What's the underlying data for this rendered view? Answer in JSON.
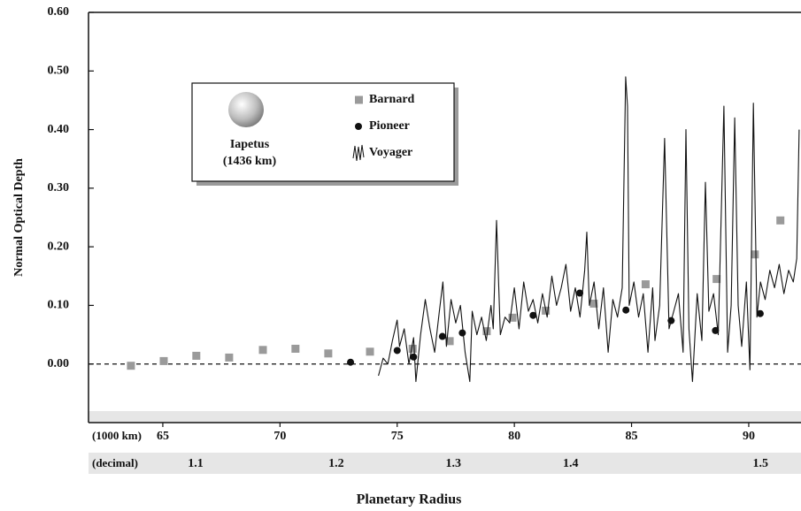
{
  "chart_data": {
    "type": "scatter",
    "y_label": "Normal Optical Depth",
    "x_label": "Planetary Radius",
    "xlim": [
      61.83,
      92.23
    ],
    "ylim": [
      -0.1,
      0.6
    ],
    "xticks": [
      65,
      70,
      75,
      80,
      85,
      90
    ],
    "x_row_label": "(1000 km)",
    "x2_row_label": "(decimal)",
    "x2ticks": [
      {
        "value": 66.4,
        "label": "1.1"
      },
      {
        "value": 72.4,
        "label": "1.2"
      },
      {
        "value": 77.4,
        "label": "1.3"
      },
      {
        "value": 82.4,
        "label": "1.4"
      },
      {
        "value": 90.5,
        "label": "1.5"
      }
    ],
    "yticks": [
      {
        "value": 0.6,
        "label": "0.60"
      },
      {
        "value": 0.5,
        "label": "0.50"
      },
      {
        "value": 0.4,
        "label": "0.40"
      },
      {
        "value": 0.3,
        "label": "0.30"
      },
      {
        "value": 0.2,
        "label": "0.20"
      },
      {
        "value": 0.1,
        "label": "0.10"
      },
      {
        "value": 0,
        "label": "0.00"
      }
    ],
    "reference_line": 0,
    "legend": "upper left",
    "annotation": [
      "Iapetus",
      "(1436 km)"
    ],
    "series": [
      {
        "name": "Barnard",
        "color": "#9a9a9a",
        "marker": "square",
        "x": [
          63.64,
          65.04,
          66.43,
          67.83,
          69.27,
          70.66,
          72.06,
          73.84,
          75.66,
          77.24,
          78.82,
          79.92,
          81.34,
          83.39,
          85.6,
          88.63,
          90.26,
          91.35
        ],
        "values": [
          -0.003,
          0.005,
          0.014,
          0.011,
          0.024,
          0.026,
          0.018,
          0.021,
          0.026,
          0.039,
          0.056,
          0.079,
          0.091,
          0.103,
          0.136,
          0.145,
          0.187,
          0.245
        ]
      },
      {
        "name": "Pioneer",
        "color": "#111111",
        "marker": "circle",
        "x": [
          73.01,
          75.0,
          75.7,
          76.93,
          77.78,
          80.8,
          82.79,
          84.76,
          86.69,
          88.58,
          90.49
        ],
        "values": [
          0.003,
          0.023,
          0.012,
          0.047,
          0.053,
          0.083,
          0.121,
          0.092,
          0.074,
          0.057,
          0.086
        ]
      },
      {
        "name": "Voyager",
        "color": "#111111",
        "marker": "line",
        "x": [
          74.2,
          74.4,
          74.6,
          74.8,
          75.0,
          75.1,
          75.3,
          75.5,
          75.7,
          75.8,
          76.0,
          76.2,
          76.4,
          76.6,
          76.8,
          76.95,
          77.1,
          77.3,
          77.5,
          77.7,
          77.9,
          78.1,
          78.2,
          78.4,
          78.6,
          78.8,
          79.0,
          79.1,
          79.24,
          79.4,
          79.6,
          79.8,
          80.0,
          80.2,
          80.4,
          80.6,
          80.8,
          81.0,
          81.2,
          81.4,
          81.6,
          81.8,
          82.0,
          82.2,
          82.4,
          82.6,
          82.8,
          83.0,
          83.09,
          83.2,
          83.4,
          83.6,
          83.8,
          84.0,
          84.2,
          84.4,
          84.6,
          84.75,
          84.83,
          84.9,
          85.1,
          85.3,
          85.5,
          85.7,
          85.9,
          86.0,
          86.2,
          86.41,
          86.6,
          86.8,
          87.0,
          87.2,
          87.32,
          87.45,
          87.6,
          87.8,
          88.0,
          88.15,
          88.3,
          88.5,
          88.7,
          88.94,
          89.1,
          89.25,
          89.4,
          89.55,
          89.7,
          89.9,
          90.05,
          90.2,
          90.35,
          90.5,
          90.7,
          90.9,
          91.1,
          91.3,
          91.5,
          91.7,
          91.9,
          92.05,
          92.15
        ],
        "values": [
          -0.02,
          0.01,
          0.0,
          0.04,
          0.075,
          0.03,
          0.06,
          0.0,
          0.045,
          -0.03,
          0.05,
          0.11,
          0.06,
          0.02,
          0.09,
          0.14,
          0.03,
          0.11,
          0.07,
          0.1,
          0.02,
          -0.03,
          0.09,
          0.05,
          0.08,
          0.04,
          0.1,
          0.06,
          0.245,
          0.05,
          0.08,
          0.07,
          0.13,
          0.06,
          0.14,
          0.09,
          0.11,
          0.07,
          0.12,
          0.08,
          0.15,
          0.1,
          0.13,
          0.17,
          0.09,
          0.13,
          0.08,
          0.16,
          0.225,
          0.1,
          0.14,
          0.06,
          0.13,
          0.02,
          0.11,
          0.08,
          0.13,
          0.49,
          0.44,
          0.1,
          0.14,
          0.08,
          0.12,
          0.02,
          0.13,
          0.04,
          0.1,
          0.385,
          0.06,
          0.09,
          0.12,
          0.02,
          0.4,
          0.06,
          -0.03,
          0.12,
          0.04,
          0.31,
          0.09,
          0.12,
          0.05,
          0.44,
          0.02,
          0.1,
          0.42,
          0.1,
          0.03,
          0.14,
          -0.01,
          0.445,
          0.08,
          0.14,
          0.11,
          0.16,
          0.13,
          0.17,
          0.12,
          0.16,
          0.14,
          0.18,
          0.4
        ]
      }
    ]
  }
}
